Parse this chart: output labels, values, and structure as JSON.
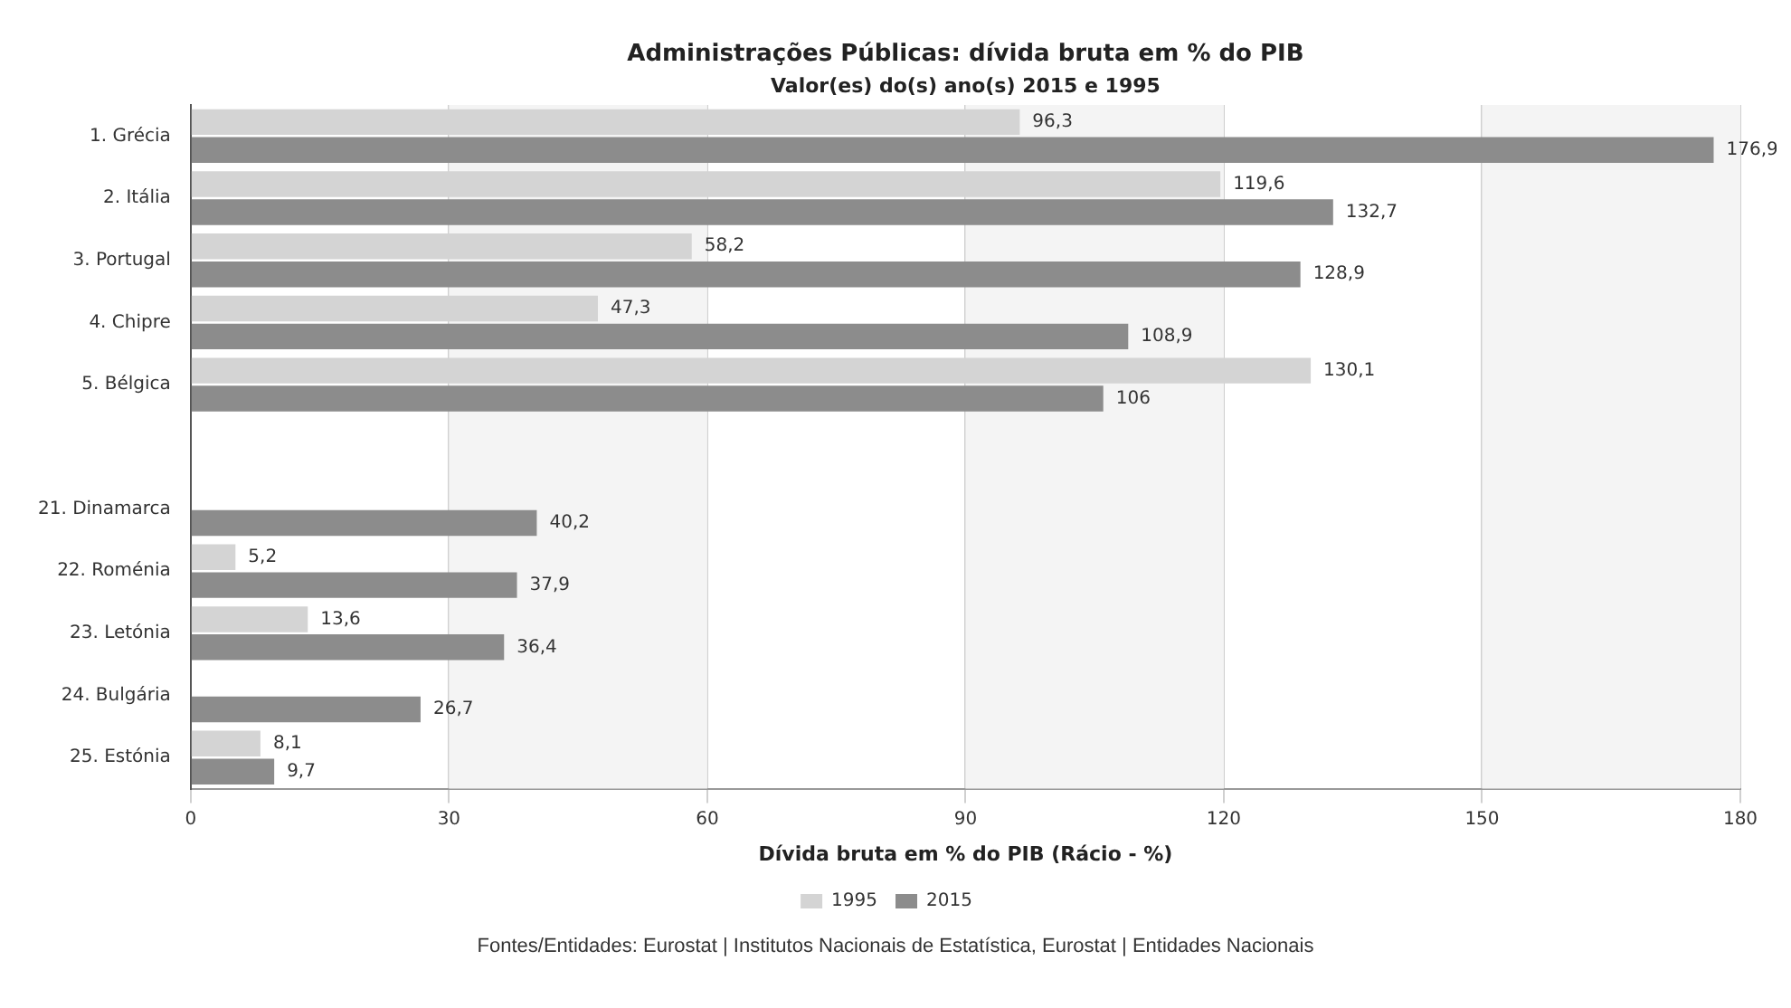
{
  "chart_data": {
    "type": "bar",
    "orientation": "horizontal",
    "title": "Administrações Públicas: dívida bruta em % do PIB",
    "subtitle": "Valor(es) do(s) ano(s) 2015 e 1995",
    "xlabel": "Dívida bruta em % do PIB (Rácio - %)",
    "categories": [
      "1. Grécia",
      "2. Itália",
      "3. Portugal",
      "4. Chipre",
      "5. Bélgica",
      null,
      "21. Dinamarca",
      "22. Roménia",
      "23. Letónia",
      "24. Bulgária",
      "25. Estónia"
    ],
    "series": [
      {
        "name": "1995",
        "color": "#d4d4d4",
        "values": [
          96.3,
          119.6,
          58.2,
          47.3,
          130.1,
          null,
          null,
          5.2,
          13.6,
          null,
          8.1
        ],
        "value_labels": [
          "96,3",
          "119,6",
          "58,2",
          "47,3",
          "130,1",
          null,
          null,
          "5,2",
          "13,6",
          null,
          "8,1"
        ]
      },
      {
        "name": "2015",
        "color": "#8c8c8c",
        "values": [
          176.9,
          132.7,
          128.9,
          108.9,
          106,
          null,
          40.2,
          37.9,
          36.4,
          26.7,
          9.7
        ],
        "value_labels": [
          "176,9",
          "132,7",
          "128,9",
          "108,9",
          "106",
          null,
          "40,2",
          "37,9",
          "36,4",
          "26,7",
          "9,7"
        ]
      }
    ],
    "xlim": [
      0,
      180
    ],
    "xticks": [
      0,
      30,
      60,
      90,
      120,
      150,
      180
    ],
    "grid": "x",
    "legend": "bottom",
    "annotations": [
      "Fontes/Entidades: Eurostat | Institutos Nacionais de Estatística, Eurostat | Entidades Nacionais"
    ]
  }
}
